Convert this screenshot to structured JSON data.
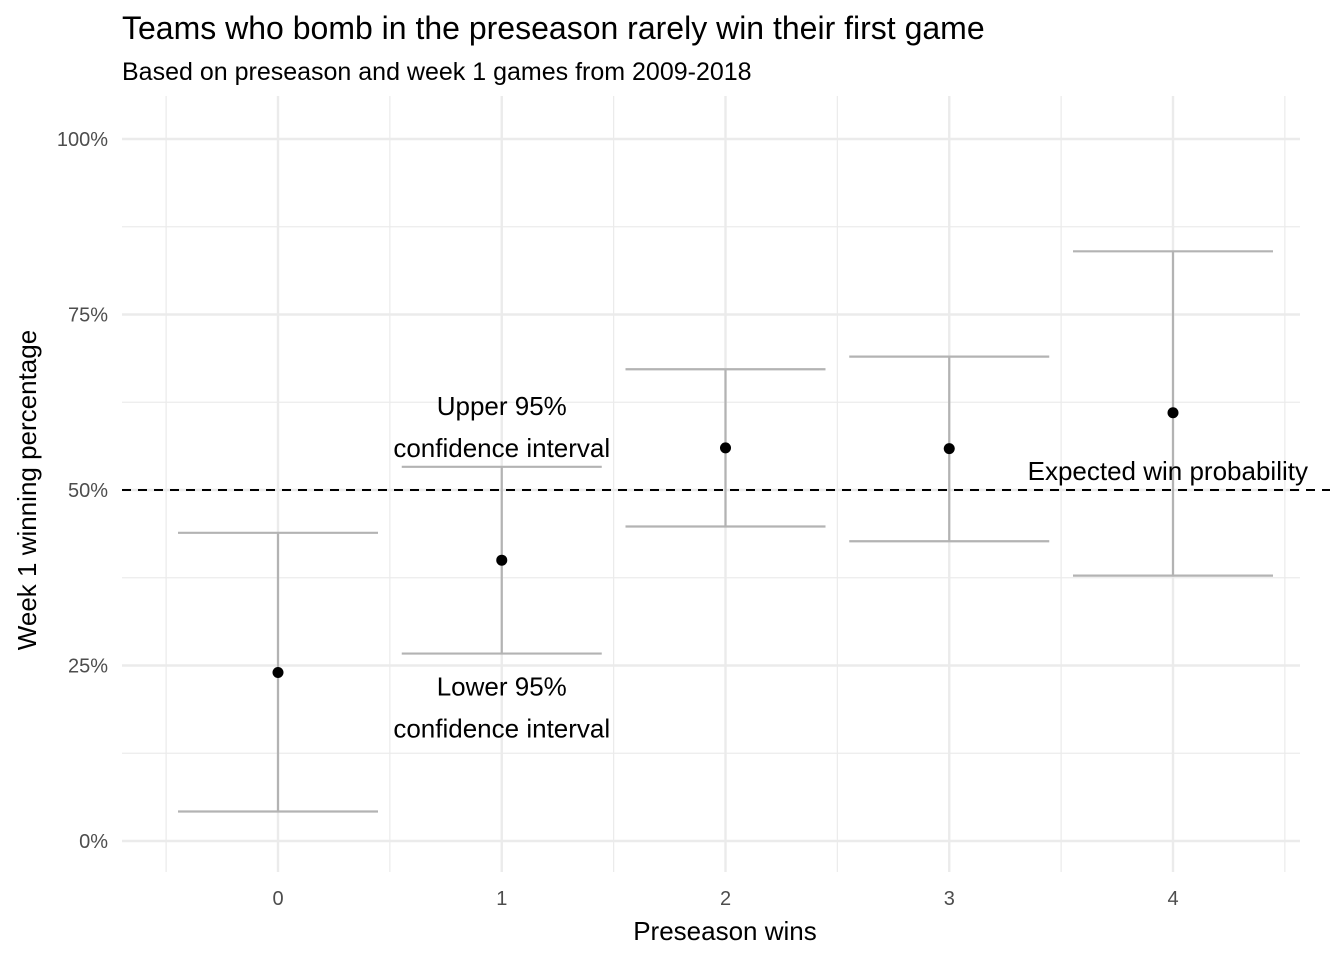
{
  "chart_data": {
    "type": "scatter",
    "title": "Teams who bomb in the preseason rarely win their first game",
    "subtitle": "Based on preseason and week 1 games from 2009-2018",
    "xlabel": "Preseason wins",
    "ylabel": "Week 1 winning percentage",
    "x_ticks": [
      "0",
      "1",
      "2",
      "3",
      "4"
    ],
    "y_ticks": [
      {
        "value": 0,
        "label": "0%"
      },
      {
        "value": 0.25,
        "label": "25%"
      },
      {
        "value": 0.5,
        "label": "50%"
      },
      {
        "value": 0.75,
        "label": "75%"
      },
      {
        "value": 1.0,
        "label": "100%"
      }
    ],
    "xlim": [
      -0.5,
      4.5
    ],
    "ylim": [
      0,
      1.0
    ],
    "grid": true,
    "points": [
      {
        "x": 0,
        "y": 0.24,
        "lower": 0.042,
        "upper": 0.439
      },
      {
        "x": 1,
        "y": 0.4,
        "lower": 0.267,
        "upper": 0.533
      },
      {
        "x": 2,
        "y": 0.56,
        "lower": 0.448,
        "upper": 0.672
      },
      {
        "x": 3,
        "y": 0.559,
        "lower": 0.427,
        "upper": 0.69
      },
      {
        "x": 4,
        "y": 0.61,
        "lower": 0.378,
        "upper": 0.84
      }
    ],
    "reference_line": {
      "y": 0.5,
      "label": "Expected win probability"
    },
    "annotations": [
      {
        "x": 1,
        "y": 0.62,
        "text": "Upper 95%"
      },
      {
        "x": 1,
        "y": 0.56,
        "text": "confidence interval"
      },
      {
        "x": 1,
        "y": 0.22,
        "text": "Lower 95%"
      },
      {
        "x": 1,
        "y": 0.16,
        "text": "confidence interval"
      }
    ],
    "colors": {
      "point": "#000000",
      "errorbar": "#b3b3b3",
      "grid": "#ebebeb",
      "reference": "#000000"
    }
  }
}
